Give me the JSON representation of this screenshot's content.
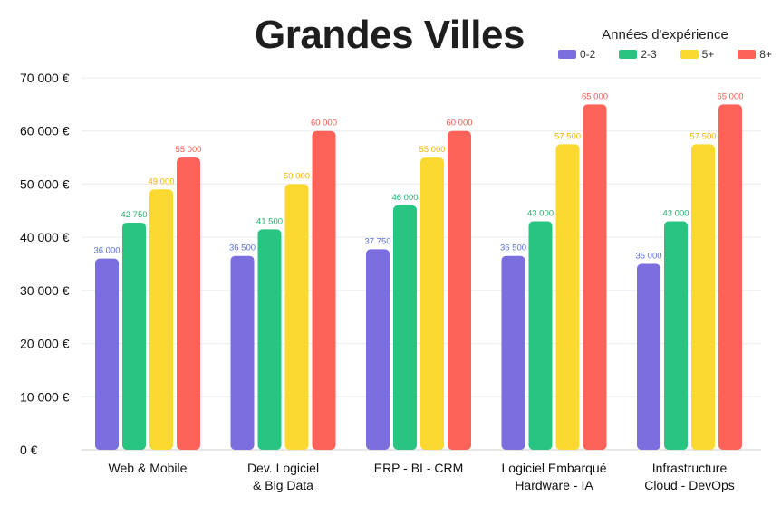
{
  "chart_data": {
    "type": "bar",
    "title": "Grandes Villes",
    "legend_title": "Années d'expérience",
    "legend_position": "top-right",
    "grid": true,
    "ylim": [
      0,
      70000
    ],
    "y_ticks": [
      0,
      10000,
      20000,
      30000,
      40000,
      50000,
      60000,
      70000
    ],
    "y_tick_labels": [
      "0 €",
      "10 000 €",
      "20 000 €",
      "30 000 €",
      "40 000 €",
      "50 000 €",
      "60 000 €",
      "70 000 €"
    ],
    "categories": [
      [
        "Web & Mobile"
      ],
      [
        "Dev. Logiciel",
        "& Big Data"
      ],
      [
        "ERP - BI - CRM"
      ],
      [
        "Logiciel Embarqué",
        "Hardware - IA"
      ],
      [
        "Infrastructure",
        "Cloud - DevOps"
      ]
    ],
    "series": [
      {
        "name": "0-2",
        "color": "#7b6fe0",
        "label_color": "#5a6fd6",
        "values": [
          36000,
          36500,
          37750,
          36500,
          35000
        ],
        "labels": [
          "36 000",
          "36 500",
          "37 750",
          "36 500",
          "35 000"
        ]
      },
      {
        "name": "2-3",
        "color": "#27c482",
        "label_color": "#22b070",
        "values": [
          42750,
          41500,
          46000,
          43000,
          43000
        ],
        "labels": [
          "42 750",
          "41 500",
          "46 000",
          "43 000",
          "43 000"
        ]
      },
      {
        "name": "5+",
        "color": "#fcd930",
        "label_color": "#f0b400",
        "values": [
          49000,
          50000,
          55000,
          57500,
          57500
        ],
        "labels": [
          "49 000",
          "50 000",
          "55 000",
          "57 500",
          "57 500"
        ]
      },
      {
        "name": "8+",
        "color": "#fd6358",
        "label_color": "#f05a4e",
        "values": [
          55000,
          60000,
          60000,
          65000,
          65000
        ],
        "labels": [
          "55 000",
          "60 000",
          "60 000",
          "65 000",
          "65 000"
        ]
      }
    ]
  }
}
